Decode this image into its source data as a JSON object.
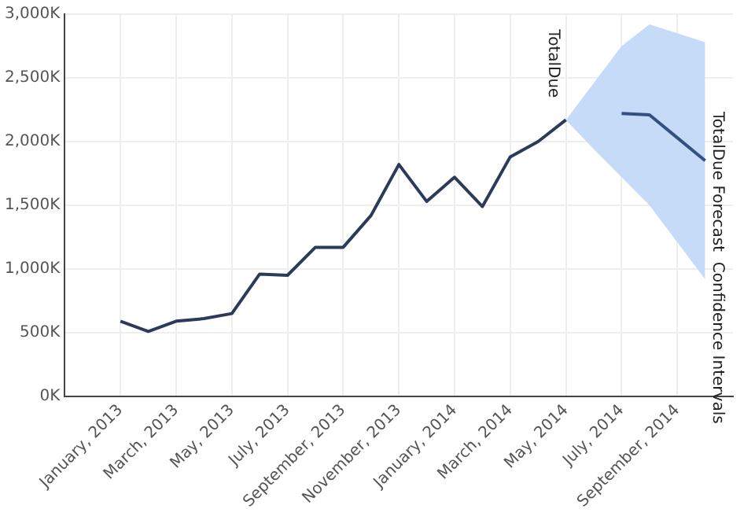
{
  "chart_data": {
    "type": "line",
    "categories": [
      "January, 2013",
      null,
      "March, 2013",
      null,
      "May, 2013",
      null,
      "July, 2013",
      null,
      "September, 2013",
      null,
      "November, 2013",
      null,
      "January, 2014",
      null,
      "March, 2014",
      null,
      "May, 2014",
      null,
      "July, 2014",
      null,
      "September, 2014",
      null
    ],
    "series": [
      {
        "name": "TotalDue",
        "color": "#2c3a5c",
        "values": [
          590,
          510,
          590,
          610,
          650,
          960,
          950,
          1170,
          1170,
          1420,
          1820,
          1530,
          1720,
          1490,
          1880,
          2000,
          2170,
          null,
          null,
          null,
          null,
          null
        ]
      },
      {
        "name": "TotalDue Forecast  Confidence Intervals",
        "color": "#34507f",
        "values": [
          null,
          null,
          null,
          null,
          null,
          null,
          null,
          null,
          null,
          null,
          null,
          null,
          null,
          null,
          null,
          null,
          null,
          null,
          2220,
          2210,
          2030,
          1850
        ],
        "lower": [
          null,
          null,
          null,
          null,
          null,
          null,
          null,
          null,
          null,
          null,
          null,
          null,
          null,
          null,
          null,
          null,
          2170,
          1940,
          1720,
          1500,
          1210,
          920
        ],
        "upper": [
          null,
          null,
          null,
          null,
          null,
          null,
          null,
          null,
          null,
          null,
          null,
          null,
          null,
          null,
          null,
          null,
          2170,
          2460,
          2750,
          2920,
          2850,
          2780
        ]
      }
    ],
    "ylim": [
      0,
      3000
    ],
    "yticks": [
      {
        "value": 0,
        "label": "0K"
      },
      {
        "value": 500,
        "label": "500K"
      },
      {
        "value": 1000,
        "label": "1,000K"
      },
      {
        "value": 1500,
        "label": "1,500K"
      },
      {
        "value": 2000,
        "label": "2,000K"
      },
      {
        "value": 2500,
        "label": "2,500K"
      },
      {
        "value": 3000,
        "label": "3,000K"
      }
    ],
    "grid": true,
    "legend": false,
    "marker": "none",
    "line_style": "solid"
  }
}
